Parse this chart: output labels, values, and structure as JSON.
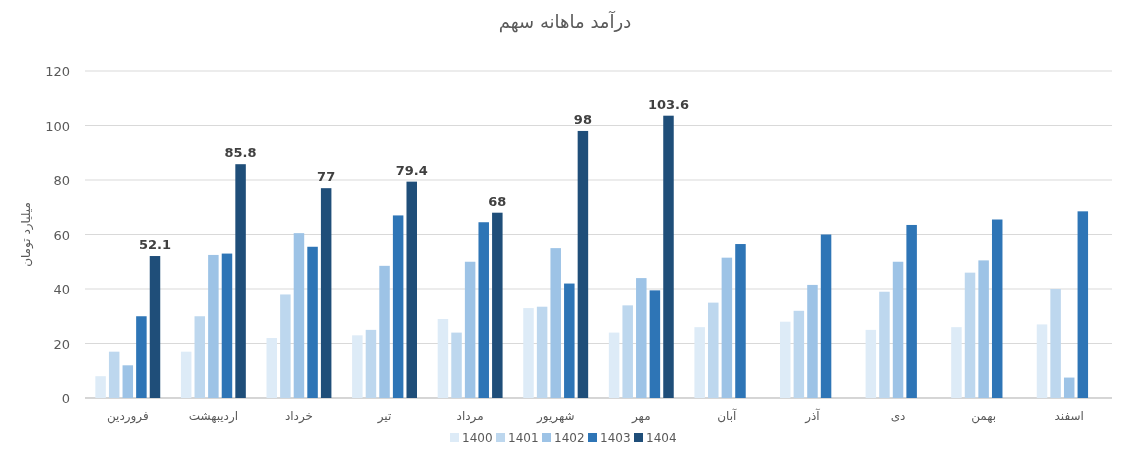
{
  "chart_data": {
    "type": "bar",
    "title": "درآمد ماهانه سهم",
    "ylabel": "میلیارد تومان",
    "categories": [
      "فروردین",
      "اردیبهشت",
      "خرداد",
      "تیر",
      "مرداد",
      "شهریور",
      "مهر",
      "آبان",
      "آذر",
      "دی",
      "بهمن",
      "اسفند"
    ],
    "series": [
      {
        "name": "1400",
        "color": "#ddebf7",
        "values": [
          8,
          17,
          22,
          23,
          29,
          33,
          24,
          26,
          28,
          25,
          26,
          27
        ]
      },
      {
        "name": "1401",
        "color": "#bdd7ee",
        "values": [
          17,
          30,
          38,
          25,
          24,
          33.5,
          34,
          35,
          32,
          39,
          46,
          40
        ]
      },
      {
        "name": "1402",
        "color": "#9dc3e6",
        "values": [
          12,
          52.5,
          60.5,
          48.5,
          50,
          55,
          44,
          51.5,
          41.5,
          50,
          50.5,
          7.5
        ]
      },
      {
        "name": "1403",
        "color": "#2e75b6",
        "values": [
          30,
          53,
          55.5,
          67,
          64.5,
          42,
          39.5,
          56.5,
          60,
          63.5,
          65.5,
          68.5
        ]
      },
      {
        "name": "1404",
        "color": "#1f4e79",
        "values": [
          52.1,
          85.8,
          77,
          79.4,
          68,
          98,
          103.6,
          null,
          null,
          null,
          null,
          null
        ],
        "value_labels": [
          "52.1",
          "85.8",
          "77",
          "79.4",
          "68",
          "98",
          "103.6",
          null,
          null,
          null,
          null,
          null
        ]
      }
    ],
    "ylim": [
      0,
      120
    ],
    "yticks": [
      0,
      20,
      40,
      60,
      80,
      100,
      120
    ],
    "grid": "y",
    "legend": "bottom"
  }
}
